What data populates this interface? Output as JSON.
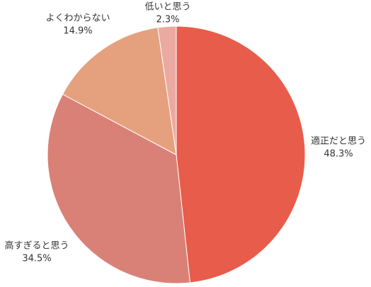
{
  "chart_data": {
    "type": "pie",
    "categories": [
      "適正だと思う",
      "高すぎると思う",
      "よくわからない",
      "低いと思う"
    ],
    "values": [
      48.3,
      34.5,
      14.9,
      2.3
    ],
    "value_labels": [
      "48.3%",
      "34.5%",
      "14.9%",
      "2.3%"
    ],
    "colors": [
      "#e85c4b",
      "#d98177",
      "#e5a07e",
      "#eaaaa2"
    ]
  }
}
